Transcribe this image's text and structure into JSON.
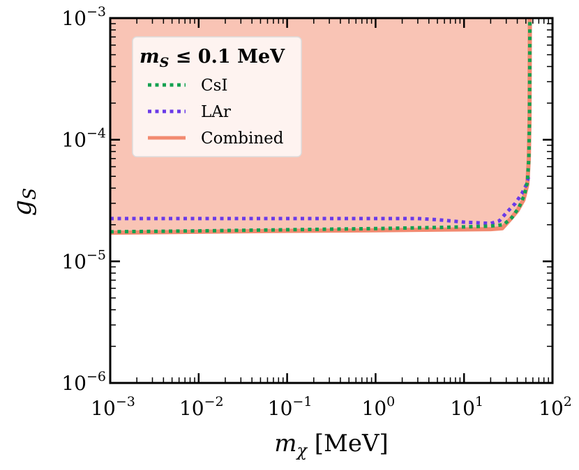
{
  "chart_data": {
    "type": "line",
    "xscale": "log",
    "yscale": "log",
    "xlim": [
      0.001,
      100
    ],
    "ylim": [
      1e-06,
      0.001
    ],
    "xlabel": {
      "var": "m",
      "sub": "χ",
      "unit": " [MeV]"
    },
    "ylabel": {
      "var": "g",
      "sub": "S"
    },
    "x_ticks": [
      {
        "base": "10",
        "exp": "−3"
      },
      {
        "base": "10",
        "exp": "−2"
      },
      {
        "base": "10",
        "exp": "−1"
      },
      {
        "base": "10",
        "exp": "0"
      },
      {
        "base": "10",
        "exp": "1"
      },
      {
        "base": "10",
        "exp": "2"
      }
    ],
    "y_ticks": [
      {
        "base": "10",
        "exp": "−6"
      },
      {
        "base": "10",
        "exp": "−5"
      },
      {
        "base": "10",
        "exp": "−4"
      },
      {
        "base": "10",
        "exp": "−3"
      }
    ],
    "legend": {
      "title_var": "m",
      "title_sub": "S",
      "title_rest": " ≤ 0.1 MeV",
      "location": "upper-left",
      "entries": [
        {
          "label": "CsI",
          "series": "CsI"
        },
        {
          "label": "LAr",
          "series": "LAr"
        },
        {
          "label": "Combined",
          "series": "Combined"
        }
      ]
    },
    "excluded_region": {
      "bounded_by": "Combined",
      "fill": "#f9c4b5",
      "side": "above"
    },
    "series": [
      {
        "name": "CsI",
        "style": "dotted",
        "color": "#13a150",
        "x": [
          0.001,
          0.01,
          0.1,
          1,
          5,
          10,
          20,
          28,
          35,
          42,
          48,
          52,
          54,
          55,
          55.3,
          55.5
        ],
        "y": [
          1.75e-05,
          1.78e-05,
          1.82e-05,
          1.86e-05,
          1.9e-05,
          1.92e-05,
          1.95e-05,
          2e-05,
          2.3e-05,
          2.8e-05,
          3.5e-05,
          4.5e-05,
          7e-05,
          0.00015,
          0.0004,
          0.001
        ]
      },
      {
        "name": "LAr",
        "style": "dotted",
        "color": "#6a3ae8",
        "x": [
          0.001,
          0.01,
          0.1,
          1,
          3,
          5,
          10,
          20,
          25,
          30,
          38,
          45,
          50,
          53,
          54.5
        ],
        "y": [
          2.25e-05,
          2.25e-05,
          2.25e-05,
          2.25e-05,
          2.25e-05,
          2.2e-05,
          2.1e-05,
          2.05e-05,
          2.15e-05,
          2.5e-05,
          3e-05,
          3.6e-05,
          4.2e-05,
          4.8e-05,
          5.2e-05
        ]
      },
      {
        "name": "Combined",
        "style": "solid",
        "color": "#f28a70",
        "x": [
          0.001,
          0.01,
          0.1,
          1,
          10,
          20,
          27,
          33,
          40,
          47,
          52,
          54,
          55,
          55.3,
          55.5
        ],
        "y": [
          1.72e-05,
          1.75e-05,
          1.78e-05,
          1.8e-05,
          1.83e-05,
          1.84e-05,
          1.87e-05,
          2.2e-05,
          2.6e-05,
          3.2e-05,
          4.3e-05,
          7e-05,
          0.00015,
          0.0004,
          0.001
        ]
      }
    ]
  }
}
